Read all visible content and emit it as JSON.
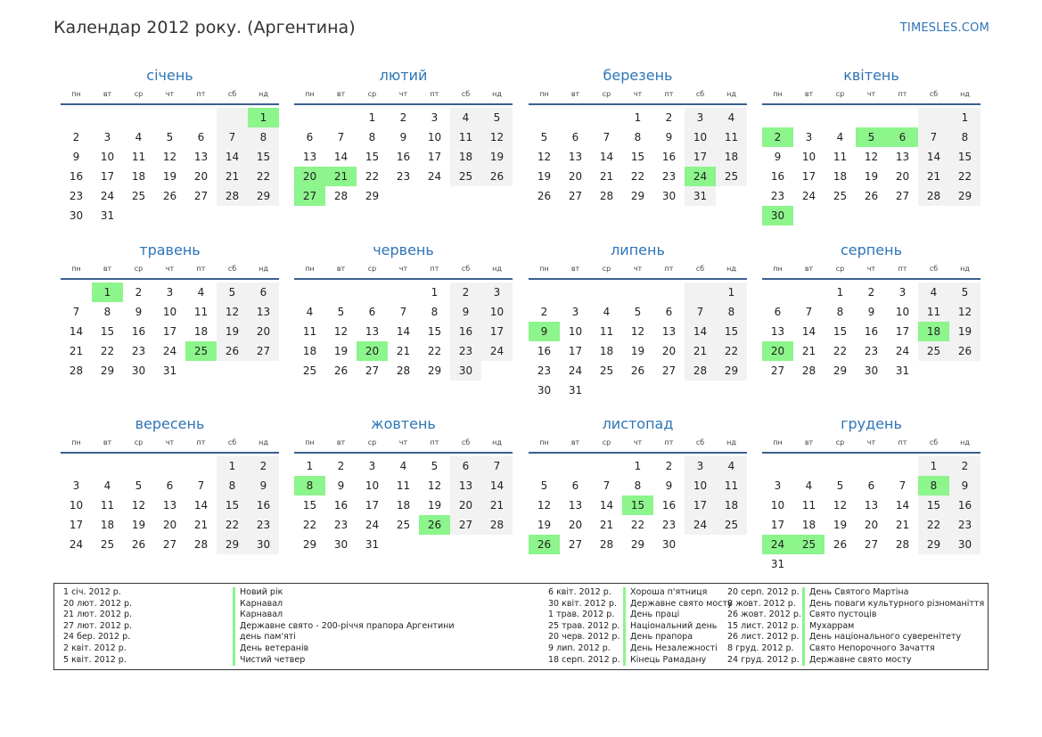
{
  "title": "Календар 2012 року. (Аргентина)",
  "brand": "TIMESLES.COM",
  "weekdays": [
    "пн",
    "вт",
    "ср",
    "чт",
    "пт",
    "сб",
    "нд"
  ],
  "months": [
    {
      "name": "січень",
      "offset": 6,
      "days": 31,
      "holidays": [
        1
      ]
    },
    {
      "name": "лютий",
      "offset": 2,
      "days": 29,
      "holidays": [
        20,
        21,
        27
      ]
    },
    {
      "name": "березень",
      "offset": 3,
      "days": 31,
      "holidays": [
        24
      ]
    },
    {
      "name": "квітень",
      "offset": 6,
      "days": 30,
      "holidays": [
        2,
        5,
        6,
        30
      ]
    },
    {
      "name": "травень",
      "offset": 1,
      "days": 31,
      "holidays": [
        1,
        25
      ]
    },
    {
      "name": "червень",
      "offset": 4,
      "days": 30,
      "holidays": [
        20
      ]
    },
    {
      "name": "липень",
      "offset": 6,
      "days": 31,
      "holidays": [
        9
      ]
    },
    {
      "name": "серпень",
      "offset": 2,
      "days": 31,
      "holidays": [
        18,
        20
      ]
    },
    {
      "name": "вересень",
      "offset": 5,
      "days": 30,
      "holidays": []
    },
    {
      "name": "жовтень",
      "offset": 0,
      "days": 31,
      "holidays": [
        8,
        26
      ]
    },
    {
      "name": "листопад",
      "offset": 3,
      "days": 30,
      "holidays": [
        15,
        26
      ]
    },
    {
      "name": "грудень",
      "offset": 5,
      "days": 31,
      "holidays": [
        8,
        24,
        25
      ]
    }
  ],
  "holiday_list": [
    [
      {
        "date": "1 січ. 2012 р.",
        "name": "Новий рік"
      },
      {
        "date": "20 лют. 2012 р.",
        "name": "Карнавал"
      },
      {
        "date": "21 лют. 2012 р.",
        "name": "Карнавал"
      },
      {
        "date": "27 лют. 2012 р.",
        "name": "Державне свято - 200-річчя прапора Аргентини"
      },
      {
        "date": "24 бер. 2012 р.",
        "name": "день пам'яті"
      },
      {
        "date": "2 квіт. 2012 р.",
        "name": "День ветеранів"
      },
      {
        "date": "5 квіт. 2012 р.",
        "name": "Чистий четвер"
      }
    ],
    [
      {
        "date": "6 квіт. 2012 р.",
        "name": "Хороша п'ятниця"
      },
      {
        "date": "30 квіт. 2012 р.",
        "name": "Державне свято мосту"
      },
      {
        "date": "1 трав. 2012 р.",
        "name": "День праці"
      },
      {
        "date": "25 трав. 2012 р.",
        "name": "Національний день"
      },
      {
        "date": "20 черв. 2012 р.",
        "name": "День прапора"
      },
      {
        "date": "9 лип. 2012 р.",
        "name": "День Незалежності"
      },
      {
        "date": "18 серп. 2012 р.",
        "name": "Кінець Рамадану"
      }
    ],
    [
      {
        "date": "20 серп. 2012 р.",
        "name": "День Святого Мартіна"
      },
      {
        "date": "8 жовт. 2012 р.",
        "name": "День поваги культурного різноманіття"
      },
      {
        "date": "26 жовт. 2012 р.",
        "name": "Свято пустоців"
      },
      {
        "date": "15 лист. 2012 р.",
        "name": "Мухаррам"
      },
      {
        "date": "26 лист. 2012 р.",
        "name": "День національного суверенітету"
      },
      {
        "date": "8 груд. 2012 р.",
        "name": "Свято Непорочного Зачаття"
      },
      {
        "date": "24 груд. 2012 р.",
        "name": "Державне свято мосту"
      }
    ]
  ],
  "colors": {
    "accent": "#2e75b6",
    "holiday": "#8cf58c",
    "weekend": "#f2f2f2",
    "rule": "#3a5f8f"
  }
}
